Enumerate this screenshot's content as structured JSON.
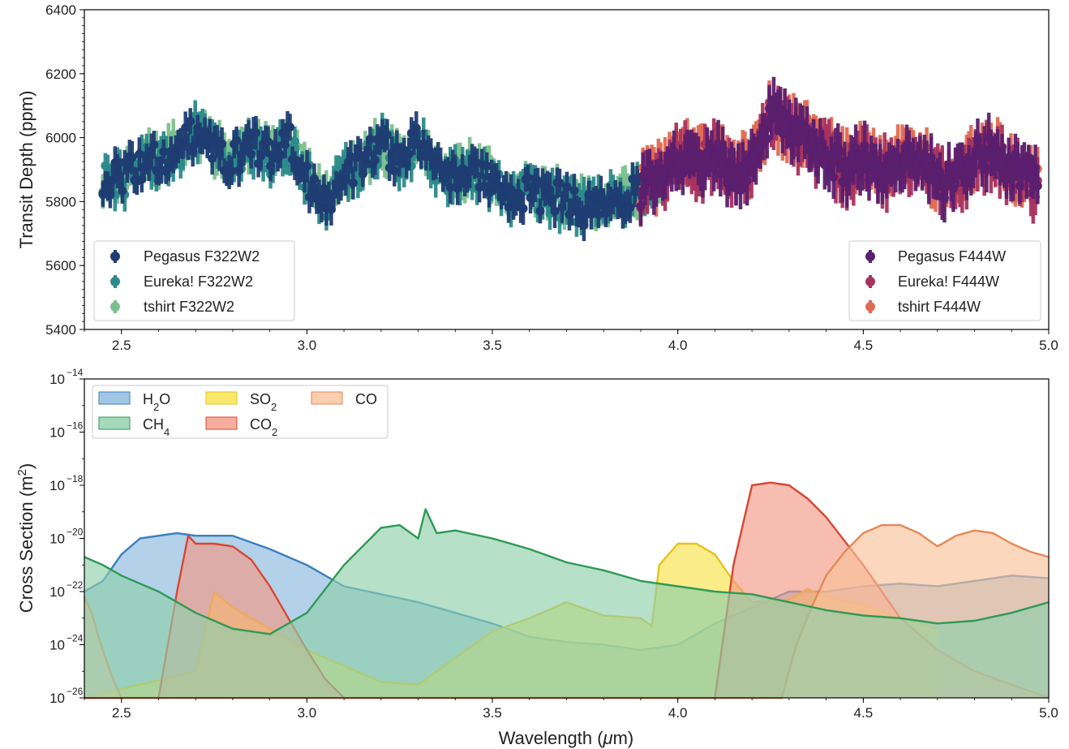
{
  "chart_data": [
    {
      "type": "scatter",
      "ylabel": "Transit Depth (ppm)",
      "xlim": [
        2.4,
        5.0
      ],
      "ylim": [
        5400,
        6400
      ],
      "xticks": [
        "2.5",
        "3.0",
        "3.5",
        "4.0",
        "4.5",
        "5.0"
      ],
      "yticks": [
        "5400",
        "5600",
        "5800",
        "6000",
        "6200",
        "6400"
      ],
      "legend_left": {
        "position": "lower-left",
        "items": [
          "Pegasus F322W2",
          "Eureka! F322W2",
          "tshirt F322W2"
        ]
      },
      "legend_right": {
        "position": "lower-right",
        "items": [
          "Pegasus F444W",
          "Eureka! F444W",
          "tshirt F444W"
        ]
      },
      "colors": {
        "Pegasus F322W2": "#1f3d72",
        "Eureka! F322W2": "#2c8a8a",
        "tshirt F322W2": "#7cc08f",
        "Pegasus F444W": "#5a1f6e",
        "Eureka! F444W": "#a8325e",
        "tshirt F444W": "#e06a52"
      },
      "f322w2": {
        "x_range": [
          2.45,
          3.95
        ],
        "n_points": 230,
        "error_ppm": 45,
        "profile_x": [
          2.45,
          2.5,
          2.55,
          2.6,
          2.65,
          2.7,
          2.75,
          2.8,
          2.85,
          2.9,
          2.95,
          3.0,
          3.05,
          3.1,
          3.15,
          3.2,
          3.25,
          3.3,
          3.35,
          3.4,
          3.45,
          3.5,
          3.55,
          3.6,
          3.65,
          3.7,
          3.75,
          3.8,
          3.85,
          3.9,
          3.95
        ],
        "profile_y": [
          5880,
          5870,
          5920,
          5930,
          5960,
          6020,
          5960,
          5930,
          5980,
          5940,
          5990,
          5880,
          5800,
          5880,
          5920,
          5980,
          5920,
          5990,
          5900,
          5880,
          5900,
          5870,
          5800,
          5830,
          5820,
          5800,
          5780,
          5800,
          5810,
          5840,
          5880
        ]
      },
      "f444w": {
        "x_range": [
          3.9,
          4.97
        ],
        "n_points": 180,
        "error_ppm": 65,
        "profile_x": [
          3.9,
          3.95,
          4.0,
          4.05,
          4.1,
          4.15,
          4.2,
          4.25,
          4.3,
          4.35,
          4.4,
          4.45,
          4.5,
          4.55,
          4.6,
          4.65,
          4.7,
          4.75,
          4.8,
          4.85,
          4.9,
          4.97
        ],
        "profile_y": [
          5840,
          5880,
          5940,
          5920,
          5950,
          5880,
          5900,
          6080,
          6010,
          6000,
          5950,
          5900,
          5930,
          5890,
          5920,
          5940,
          5870,
          5860,
          5940,
          5950,
          5900,
          5860
        ]
      }
    },
    {
      "type": "area",
      "ylabel": "Cross Section (m²)",
      "xlabel": "Wavelength (μm)",
      "xlim": [
        2.4,
        5.0
      ],
      "ylim_log10": [
        -26,
        -14
      ],
      "yscale": "log",
      "xticks": [
        "2.5",
        "3.0",
        "3.5",
        "4.0",
        "4.5",
        "5.0"
      ],
      "ytick_exponents": [
        "−14",
        "−16",
        "−18",
        "−20",
        "−22",
        "−24",
        "−26"
      ],
      "ytick_base": "10",
      "legend": {
        "position": "top-left"
      },
      "series": [
        {
          "name": "H₂O",
          "color": "#3a7fc0",
          "fill": "#8ab8dd",
          "x": [
            2.4,
            2.45,
            2.5,
            2.55,
            2.6,
            2.65,
            2.7,
            2.8,
            2.9,
            3.0,
            3.1,
            3.2,
            3.3,
            3.4,
            3.5,
            3.6,
            3.7,
            3.8,
            3.9,
            4.0,
            4.1,
            4.2,
            4.3,
            4.4,
            4.5,
            4.6,
            4.7,
            4.8,
            4.9,
            5.0
          ],
          "log_y": [
            -22.0,
            -21.6,
            -20.6,
            -20.0,
            -19.9,
            -19.8,
            -19.9,
            -19.9,
            -20.4,
            -21.0,
            -21.8,
            -22.1,
            -22.4,
            -22.8,
            -23.2,
            -23.7,
            -23.9,
            -24.0,
            -24.2,
            -24.0,
            -23.2,
            -22.6,
            -22.0,
            -22.0,
            -21.8,
            -21.7,
            -21.8,
            -21.6,
            -21.4,
            -21.5
          ]
        },
        {
          "name": "CH₄",
          "color": "#2e9a55",
          "fill": "#8fcfab",
          "x": [
            2.4,
            2.45,
            2.5,
            2.55,
            2.6,
            2.7,
            2.8,
            2.9,
            3.0,
            3.1,
            3.2,
            3.25,
            3.3,
            3.32,
            3.35,
            3.4,
            3.5,
            3.6,
            3.7,
            3.8,
            3.9,
            4.0,
            4.1,
            4.2,
            4.3,
            4.4,
            4.5,
            4.6,
            4.7,
            4.8,
            4.9,
            5.0
          ],
          "log_y": [
            -20.7,
            -21.0,
            -21.4,
            -21.7,
            -22.0,
            -22.8,
            -23.4,
            -23.6,
            -22.8,
            -21.0,
            -19.6,
            -19.5,
            -20.0,
            -18.9,
            -19.8,
            -19.7,
            -20.0,
            -20.4,
            -20.9,
            -21.2,
            -21.6,
            -21.8,
            -22.0,
            -22.1,
            -22.4,
            -22.7,
            -22.9,
            -23.0,
            -23.2,
            -23.1,
            -22.8,
            -22.4
          ]
        },
        {
          "name": "SO₂",
          "color": "#e8c21a",
          "fill": "#f7e24a",
          "x": [
            2.4,
            2.7,
            2.75,
            2.8,
            2.9,
            3.0,
            3.1,
            3.2,
            3.3,
            3.4,
            3.5,
            3.6,
            3.7,
            3.8,
            3.9,
            3.93,
            3.95,
            4.0,
            4.05,
            4.1,
            4.15,
            4.2,
            4.3,
            4.35,
            4.4,
            4.5,
            4.6,
            4.7
          ],
          "log_y": [
            -26.0,
            -25.0,
            -22.0,
            -22.6,
            -23.4,
            -24.2,
            -24.8,
            -25.4,
            -25.5,
            -24.5,
            -23.5,
            -23.0,
            -22.4,
            -22.9,
            -23.0,
            -23.3,
            -21.0,
            -20.2,
            -20.2,
            -20.6,
            -21.6,
            -22.4,
            -22.3,
            -21.9,
            -22.2,
            -22.5,
            -23.0,
            -23.4
          ]
        },
        {
          "name": "CO₂",
          "color": "#d94632",
          "fill": "#f39a86",
          "x": [
            2.4,
            2.6,
            2.65,
            2.68,
            2.7,
            2.75,
            2.8,
            2.85,
            2.9,
            2.95,
            3.0,
            3.05,
            3.1,
            4.1,
            4.15,
            4.18,
            4.2,
            4.25,
            4.3,
            4.35,
            4.4,
            4.5,
            4.6,
            4.7,
            4.8,
            4.9,
            5.0
          ],
          "log_y": [
            -26.0,
            -26.0,
            -22.0,
            -19.9,
            -20.2,
            -20.2,
            -20.3,
            -20.8,
            -21.8,
            -23.0,
            -24.2,
            -25.3,
            -26.0,
            -26.0,
            -21.0,
            -19.2,
            -18.0,
            -17.9,
            -18.0,
            -18.5,
            -19.2,
            -21.0,
            -23.0,
            -24.2,
            -25.0,
            -25.5,
            -26.0
          ]
        },
        {
          "name": "CO",
          "color": "#e48a55",
          "fill": "#f9c29a",
          "x": [
            2.4,
            2.42,
            2.44,
            2.46,
            2.48,
            2.5,
            2.52,
            4.28,
            4.32,
            4.36,
            4.4,
            4.45,
            4.5,
            4.55,
            4.6,
            4.65,
            4.7,
            4.75,
            4.8,
            4.85,
            4.9,
            4.95,
            5.0
          ],
          "log_y": [
            -22.2,
            -22.8,
            -23.8,
            -24.6,
            -25.4,
            -26.0,
            -26.0,
            -26.0,
            -24.0,
            -22.6,
            -21.4,
            -20.5,
            -19.8,
            -19.5,
            -19.5,
            -19.8,
            -20.3,
            -19.9,
            -19.7,
            -19.8,
            -20.2,
            -20.5,
            -20.7
          ]
        }
      ]
    }
  ]
}
